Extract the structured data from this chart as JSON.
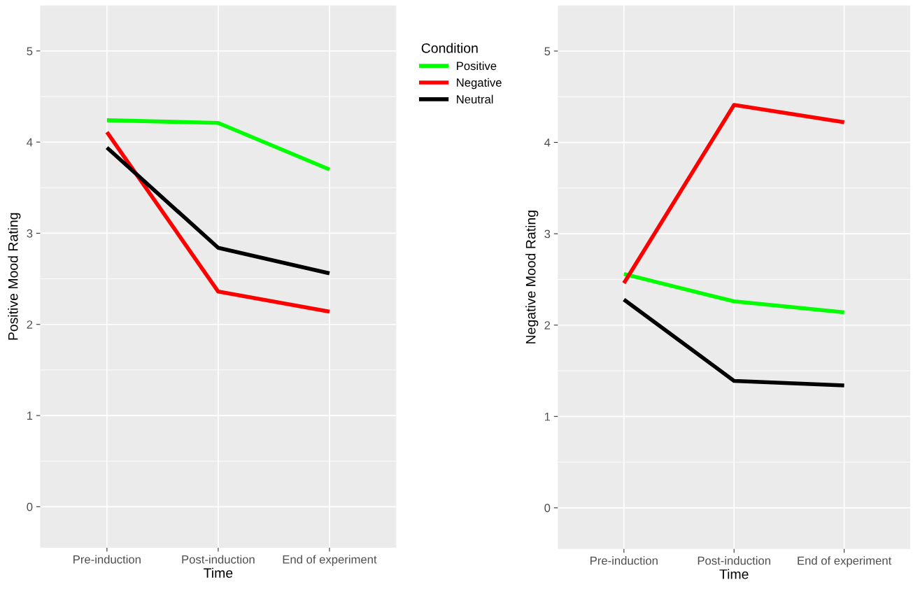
{
  "chart_data": [
    {
      "type": "line",
      "xlabel": "Time",
      "ylabel": "Positive Mood Rating",
      "categories": [
        "Pre-induction",
        "Post-induction",
        "End of experiment"
      ],
      "ylim": [
        -0.45,
        5.5
      ],
      "yticks": [
        0,
        1,
        2,
        3,
        4,
        5
      ],
      "grid": true,
      "legend": "right",
      "legend_title": "Condition",
      "series": [
        {
          "name": "Positive",
          "color": "#00ff00",
          "values": [
            4.24,
            4.21,
            3.7
          ]
        },
        {
          "name": "Negative",
          "color": "#ff0000",
          "values": [
            4.11,
            2.36,
            2.14
          ]
        },
        {
          "name": "Neutral",
          "color": "#000000",
          "values": [
            3.94,
            2.84,
            2.56
          ]
        }
      ]
    },
    {
      "type": "line",
      "xlabel": "Time",
      "ylabel": "Negative Mood Rating",
      "categories": [
        "Pre-induction",
        "Post-induction",
        "End of experiment"
      ],
      "ylim": [
        -0.45,
        5.5
      ],
      "yticks": [
        0,
        1,
        2,
        3,
        4,
        5
      ],
      "grid": true,
      "series": [
        {
          "color": "#00ff00",
          "values": [
            2.56,
            2.26,
            2.14
          ]
        },
        {
          "color": "#ff0000",
          "values": [
            2.46,
            4.41,
            4.22
          ]
        },
        {
          "color": "#000000",
          "values": [
            2.28,
            1.39,
            1.34
          ]
        }
      ]
    }
  ]
}
